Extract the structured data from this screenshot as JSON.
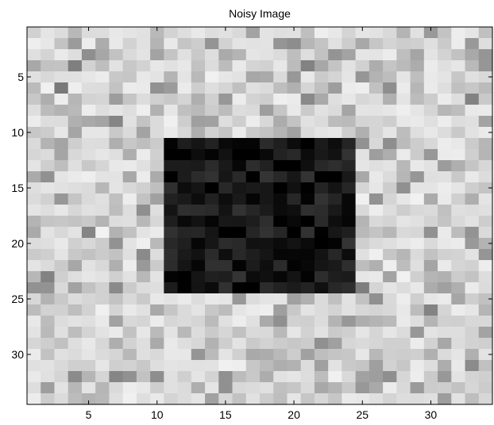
{
  "chart_data": {
    "type": "heatmap",
    "title": "Noisy Image",
    "xlabel": "",
    "ylabel": "",
    "colormap": "gray",
    "color_range": [
      0,
      1
    ],
    "grid": false,
    "xlim": [
      0.5,
      34.5
    ],
    "ylim": [
      0.5,
      34.5
    ],
    "y_direction": "reversed",
    "xticks": [
      5,
      10,
      15,
      20,
      25,
      30
    ],
    "yticks": [
      5,
      10,
      15,
      20,
      25,
      30
    ],
    "dimensions": {
      "rows": 34,
      "cols": 34
    },
    "background": {
      "base_value": 0.92,
      "noise_amplitude": 0.14
    },
    "square": {
      "rows": [
        11,
        24
      ],
      "cols": [
        11,
        24
      ],
      "base_value": 0.06,
      "noise_amplitude": 0.14
    }
  }
}
